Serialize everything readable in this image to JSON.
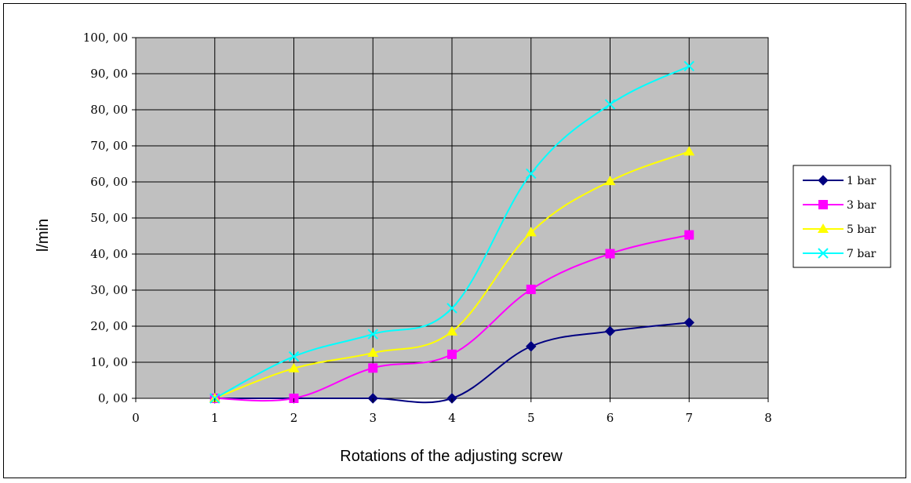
{
  "chart_data": {
    "type": "line",
    "title": "",
    "xlabel": "Rotations of the adjusting screw",
    "ylabel": "l/min",
    "xlim": [
      0,
      8
    ],
    "ylim": [
      0,
      100
    ],
    "x_ticks": [
      0,
      1,
      2,
      3,
      4,
      5,
      6,
      7,
      8
    ],
    "x_tick_labels": [
      "0",
      "1",
      "2",
      "3",
      "4",
      "5",
      "6",
      "7",
      "8"
    ],
    "y_ticks": [
      0,
      10,
      20,
      30,
      40,
      50,
      60,
      70,
      80,
      90,
      100
    ],
    "y_tick_labels": [
      "0, 00",
      "10, 00",
      "20, 00",
      "30, 00",
      "40, 00",
      "50, 00",
      "60, 00",
      "70, 00",
      "80, 00",
      "90, 00",
      "100, 00"
    ],
    "grid": true,
    "smooth": true,
    "plot_background": "#c0c0c0",
    "legend_position": "right",
    "x": [
      1,
      2,
      3,
      4,
      5,
      6,
      7
    ],
    "series": [
      {
        "name": "1 bar",
        "color": "#000080",
        "marker": "diamond",
        "values": [
          0,
          0,
          0,
          0,
          14.4,
          18.6,
          21
        ]
      },
      {
        "name": "3 bar",
        "color": "#ff00ff",
        "marker": "square",
        "values": [
          0,
          0,
          8.4,
          12.2,
          30.2,
          40.1,
          45.3
        ]
      },
      {
        "name": "5 bar",
        "color": "#ffff00",
        "marker": "triangle",
        "values": [
          0,
          8.3,
          12.6,
          18.5,
          46,
          60.2,
          68.4
        ]
      },
      {
        "name": "7 bar",
        "color": "#00ffff",
        "marker": "x",
        "values": [
          0,
          11.6,
          17.8,
          25,
          62.3,
          81.5,
          92.1
        ]
      }
    ]
  }
}
